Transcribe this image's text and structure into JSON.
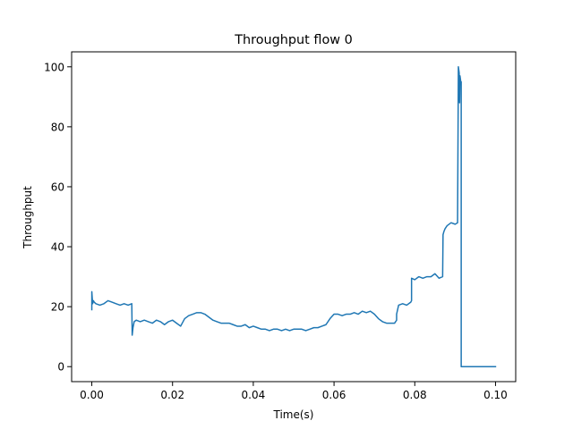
{
  "chart_data": {
    "type": "line",
    "title": "Throughput flow 0",
    "xlabel": "Time(s)",
    "ylabel": "Throughput",
    "xlim": [
      -0.005,
      0.105
    ],
    "ylim": [
      -5,
      105
    ],
    "grid": false,
    "x_ticks": [
      0.0,
      0.02,
      0.04,
      0.06,
      0.08,
      0.1
    ],
    "x_tick_labels": [
      "0.00",
      "0.02",
      "0.04",
      "0.06",
      "0.08",
      "0.10"
    ],
    "y_ticks": [
      0,
      20,
      40,
      60,
      80,
      100
    ],
    "y_tick_labels": [
      "0",
      "20",
      "40",
      "60",
      "80",
      "100"
    ],
    "series": [
      {
        "color": "#1f77b4",
        "x": [
          0.0,
          0.0,
          0.0002,
          0.0004,
          0.0006,
          0.001,
          0.002,
          0.003,
          0.004,
          0.005,
          0.006,
          0.007,
          0.008,
          0.009,
          0.0099,
          0.01,
          0.0102,
          0.0105,
          0.011,
          0.012,
          0.013,
          0.014,
          0.015,
          0.016,
          0.017,
          0.018,
          0.019,
          0.02,
          0.021,
          0.022,
          0.023,
          0.024,
          0.025,
          0.026,
          0.027,
          0.028,
          0.029,
          0.03,
          0.031,
          0.032,
          0.033,
          0.034,
          0.035,
          0.036,
          0.037,
          0.038,
          0.039,
          0.04,
          0.041,
          0.042,
          0.043,
          0.044,
          0.045,
          0.046,
          0.047,
          0.048,
          0.049,
          0.05,
          0.051,
          0.052,
          0.053,
          0.054,
          0.055,
          0.056,
          0.057,
          0.058,
          0.059,
          0.06,
          0.061,
          0.062,
          0.063,
          0.064,
          0.065,
          0.066,
          0.067,
          0.068,
          0.069,
          0.07,
          0.071,
          0.072,
          0.073,
          0.074,
          0.075,
          0.0755,
          0.0755,
          0.076,
          0.077,
          0.078,
          0.079,
          0.0792,
          0.0792,
          0.08,
          0.081,
          0.082,
          0.083,
          0.084,
          0.085,
          0.086,
          0.0869,
          0.087,
          0.0872,
          0.0875,
          0.088,
          0.089,
          0.09,
          0.0906,
          0.0906,
          0.0908,
          0.091,
          0.0911,
          0.0912,
          0.0914,
          0.0915,
          0.0915,
          0.0917,
          0.0917,
          0.092,
          0.094,
          0.096,
          0.098,
          0.1
        ],
        "y": [
          19,
          25,
          21,
          22,
          21.5,
          21,
          20.5,
          21,
          22,
          21.5,
          21,
          20.5,
          21,
          20.5,
          21,
          10.5,
          13,
          15,
          15.5,
          15,
          15.5,
          15,
          14.5,
          15.5,
          15,
          14,
          15,
          15.5,
          14.5,
          13.5,
          16,
          17,
          17.5,
          18,
          18,
          17.5,
          16.5,
          15.5,
          15,
          14.5,
          14.5,
          14.5,
          14,
          13.5,
          13.5,
          14,
          13,
          13.5,
          13,
          12.5,
          12.5,
          12,
          12.5,
          12.5,
          12,
          12.5,
          12,
          12.5,
          12.5,
          12.5,
          12,
          12.5,
          13,
          13,
          13.5,
          14,
          16,
          17.5,
          17.5,
          17,
          17.5,
          17.5,
          18,
          17.5,
          18.5,
          18,
          18.5,
          17.5,
          16,
          15,
          14.5,
          14.5,
          14.5,
          15.5,
          17.5,
          20.5,
          21,
          20.5,
          21.5,
          22,
          29.5,
          29,
          30,
          29.5,
          30,
          30,
          31,
          29.5,
          30,
          44,
          45,
          46,
          47,
          48,
          47.5,
          48,
          48,
          100,
          98,
          88,
          97,
          95,
          95,
          0,
          0,
          0,
          0,
          0,
          0,
          0,
          0
        ]
      }
    ]
  }
}
